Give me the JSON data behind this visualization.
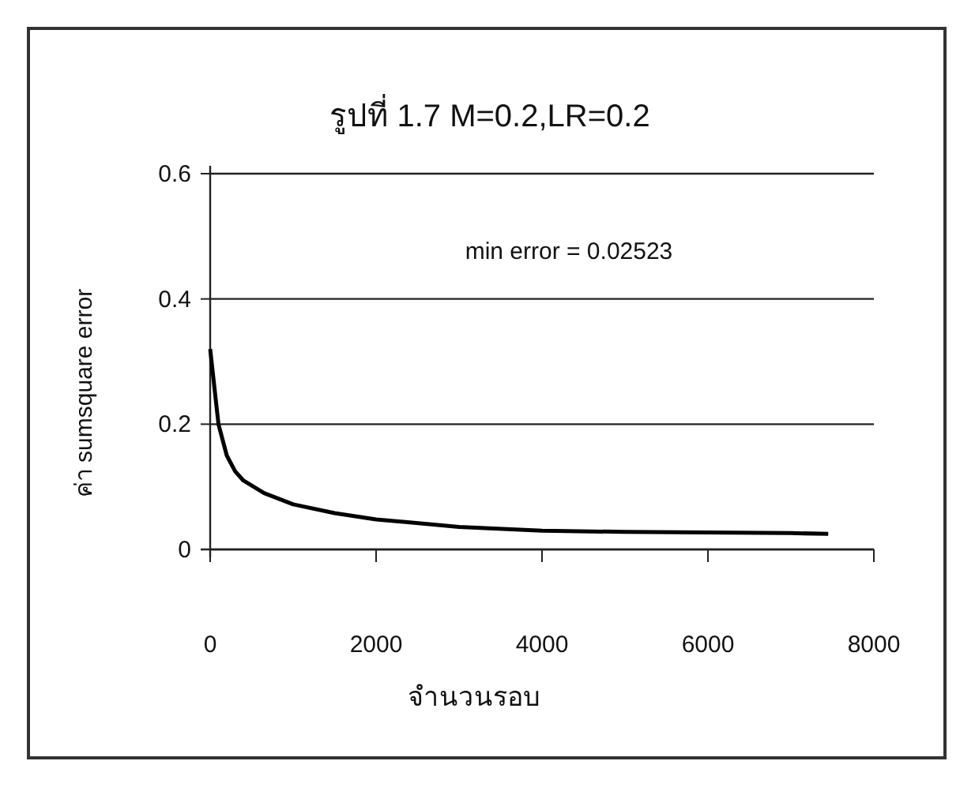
{
  "chart_data": {
    "type": "line",
    "title": "รูปที่ 1.7  M=0.2,LR=0.2",
    "xlabel": "จำนวนรอบ",
    "ylabel": "ค่า sumsquare error",
    "annotations": [
      "min error = 0.02523"
    ],
    "x": [
      0,
      50,
      100,
      200,
      300,
      400,
      650,
      1000,
      1500,
      2000,
      3000,
      4000,
      5000,
      6000,
      7000,
      7450
    ],
    "series": [
      {
        "color": "#000000",
        "values": [
          0.32,
          0.26,
          0.2,
          0.15,
          0.125,
          0.11,
          0.09,
          0.072,
          0.058,
          0.048,
          0.036,
          0.03,
          0.028,
          0.027,
          0.026,
          0.025
        ]
      }
    ],
    "xlim": [
      0,
      8000
    ],
    "xticks": [
      0,
      2000,
      4000,
      6000,
      8000
    ],
    "ylim": [
      0,
      0.6
    ],
    "yticks": [
      0,
      0.2,
      0.4,
      0.6
    ],
    "grid": "y",
    "marker": "none",
    "line_style": "solid"
  }
}
